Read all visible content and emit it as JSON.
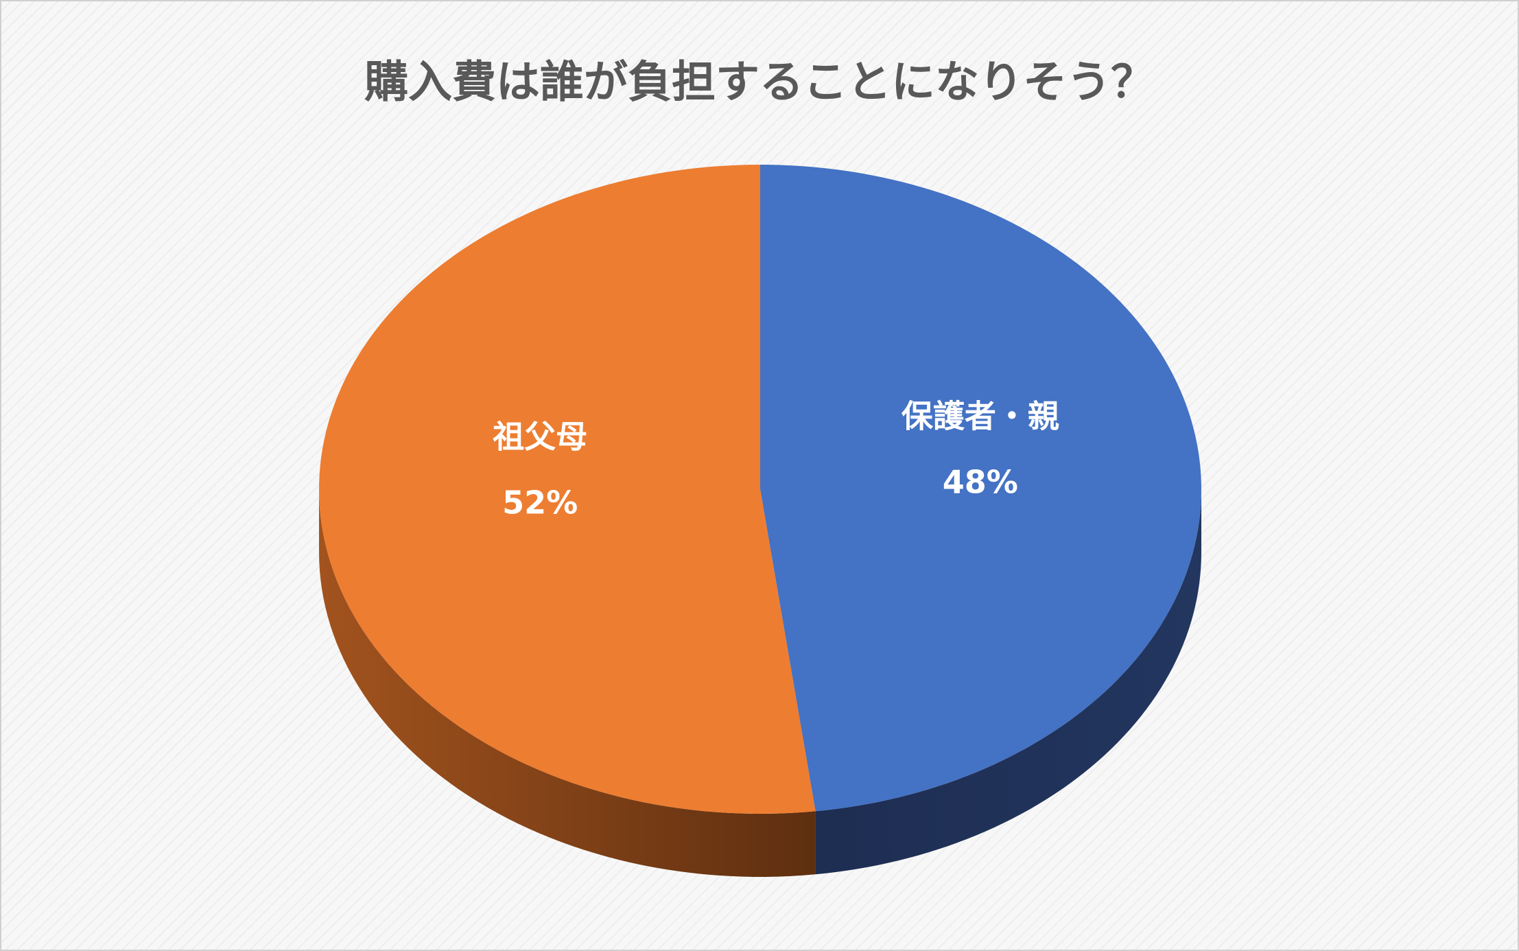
{
  "chart_data": {
    "type": "pie",
    "title": "購入費は誰が負担することになりそう？",
    "categories": [
      "保護者・親",
      "祖父母"
    ],
    "values": [
      48,
      52
    ],
    "value_labels": [
      "48%",
      "52%"
    ],
    "colors": [
      "#4472c4",
      "#ed7d31"
    ]
  }
}
